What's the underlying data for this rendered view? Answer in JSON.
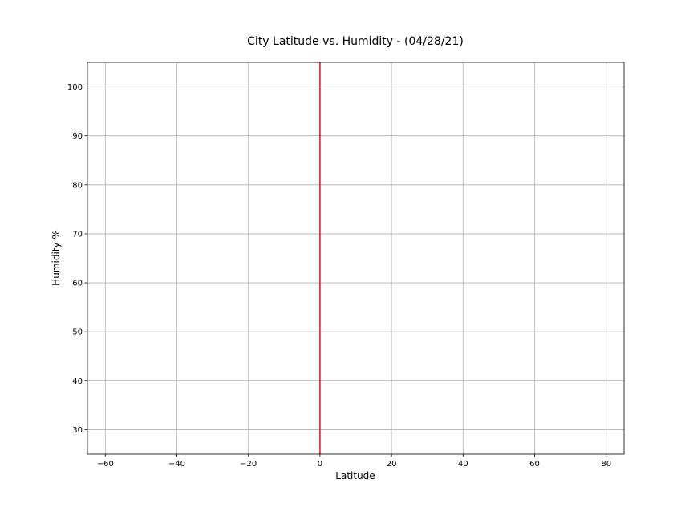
{
  "chart_data": {
    "type": "scatter",
    "title": "City Latitude vs. Humidity - (04/28/21)",
    "xlabel": "Latitude",
    "ylabel": "Humidity %",
    "xlim": [
      -65,
      85
    ],
    "ylim": [
      25,
      105
    ],
    "x_ticks": [
      -60,
      -40,
      -20,
      0,
      20,
      40,
      60,
      80
    ],
    "x_tick_labels": [
      "−60",
      "−40",
      "−20",
      "0",
      "20",
      "40",
      "60",
      "80"
    ],
    "y_ticks": [
      30,
      40,
      50,
      60,
      70,
      80,
      90,
      100
    ],
    "y_tick_labels": [
      "30",
      "40",
      "50",
      "60",
      "70",
      "80",
      "90",
      "100"
    ],
    "grid": true,
    "legend": false,
    "series": [
      {
        "x": [],
        "y": []
      }
    ],
    "reference_line": {
      "orientation": "vertical",
      "x": 0,
      "color": "#d62728"
    }
  }
}
